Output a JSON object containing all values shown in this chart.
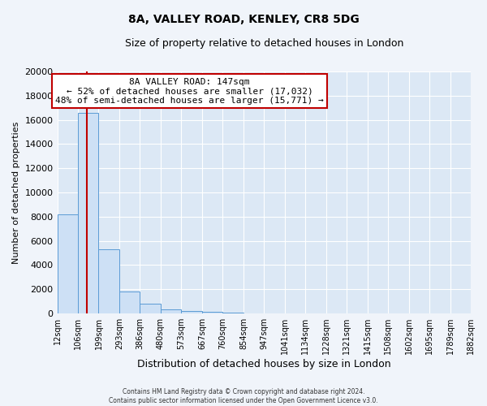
{
  "title": "8A, VALLEY ROAD, KENLEY, CR8 5DG",
  "subtitle": "Size of property relative to detached houses in London",
  "xlabel": "Distribution of detached houses by size in London",
  "ylabel": "Number of detached properties",
  "bar_edges": [
    12,
    106,
    199,
    293,
    386,
    480,
    573,
    667,
    760,
    854,
    947,
    1041,
    1134,
    1228,
    1321,
    1415,
    1508,
    1602,
    1695,
    1789,
    1882
  ],
  "bar_heights": [
    8200,
    16600,
    5300,
    1850,
    800,
    320,
    200,
    120,
    70,
    0,
    0,
    0,
    0,
    0,
    0,
    0,
    0,
    0,
    0,
    0
  ],
  "bar_color": "#cde0f5",
  "bar_edge_color": "#5b9bd5",
  "property_line_x": 147,
  "property_line_color": "#c00000",
  "annotation_title": "8A VALLEY ROAD: 147sqm",
  "annotation_line1": "← 52% of detached houses are smaller (17,032)",
  "annotation_line2": "48% of semi-detached houses are larger (15,771) →",
  "annotation_box_color": "#ffffff",
  "annotation_box_edge": "#c00000",
  "ylim": [
    0,
    20000
  ],
  "yticks": [
    0,
    2000,
    4000,
    6000,
    8000,
    10000,
    12000,
    14000,
    16000,
    18000,
    20000
  ],
  "tick_labels": [
    "12sqm",
    "106sqm",
    "199sqm",
    "293sqm",
    "386sqm",
    "480sqm",
    "573sqm",
    "667sqm",
    "760sqm",
    "854sqm",
    "947sqm",
    "1041sqm",
    "1134sqm",
    "1228sqm",
    "1321sqm",
    "1415sqm",
    "1508sqm",
    "1602sqm",
    "1695sqm",
    "1789sqm",
    "1882sqm"
  ],
  "footer_line1": "Contains HM Land Registry data © Crown copyright and database right 2024.",
  "footer_line2": "Contains public sector information licensed under the Open Government Licence v3.0.",
  "fig_bg_color": "#f0f4fa",
  "plot_bg_color": "#dce8f5",
  "grid_color": "#ffffff"
}
